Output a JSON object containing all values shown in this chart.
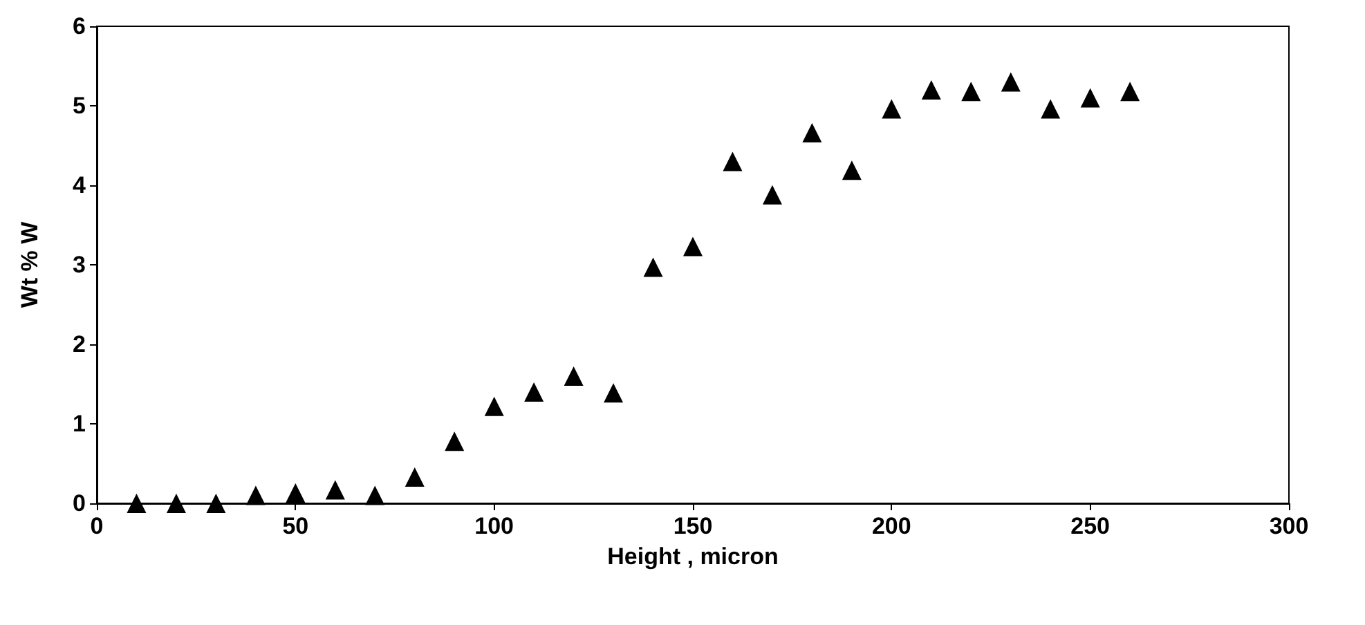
{
  "chart_data": {
    "type": "scatter",
    "xlabel": "Height , micron",
    "ylabel": "Wt % W",
    "x": [
      10,
      20,
      30,
      40,
      50,
      60,
      70,
      80,
      90,
      100,
      110,
      120,
      130,
      140,
      150,
      160,
      170,
      180,
      190,
      200,
      210,
      220,
      230,
      240,
      250,
      260
    ],
    "series": [
      {
        "color": "#000000",
        "values": [
          0,
          0,
          0,
          0.1,
          0.13,
          0.17,
          0.1,
          0.33,
          0.78,
          1.22,
          1.4,
          1.6,
          1.39,
          2.97,
          3.23,
          4.3,
          3.88,
          4.66,
          4.19,
          4.96,
          5.2,
          5.18,
          5.3,
          4.96,
          5.1,
          5.18
        ]
      }
    ],
    "xlim": [
      0,
      300
    ],
    "xticks": [
      0,
      50,
      100,
      150,
      200,
      250,
      300
    ],
    "ylim": [
      0,
      6
    ],
    "yticks": [
      0,
      1,
      2,
      3,
      4,
      5,
      6
    ],
    "marker": "triangle"
  }
}
